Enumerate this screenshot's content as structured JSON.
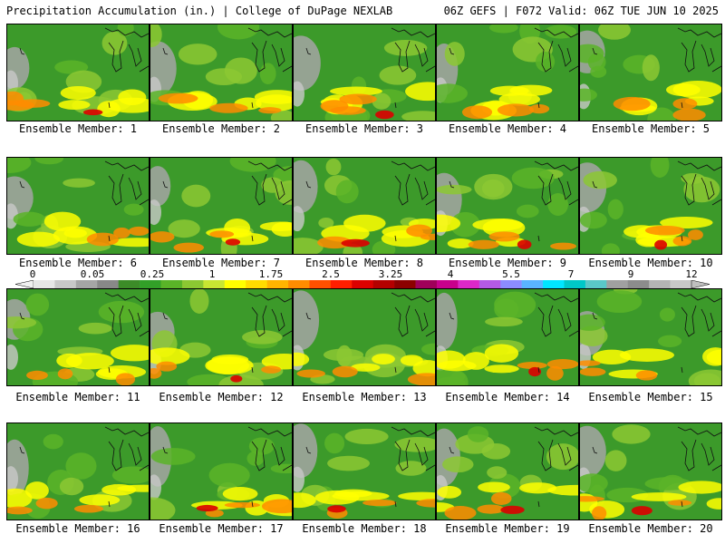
{
  "header": {
    "left": "Precipitation Accumulation (in.) | College of DuPage NEXLAB",
    "right": "06Z GEFS | F072 Valid: 06Z TUE JUN 10 2025"
  },
  "members": [
    {
      "label": "Ensemble Member: 1",
      "seed": 11
    },
    {
      "label": "Ensemble Member: 2",
      "seed": 23
    },
    {
      "label": "Ensemble Member: 3",
      "seed": 37
    },
    {
      "label": "Ensemble Member: 4",
      "seed": 41
    },
    {
      "label": "Ensemble Member: 5",
      "seed": 53
    },
    {
      "label": "Ensemble Member: 6",
      "seed": 67
    },
    {
      "label": "Ensemble Member: 7",
      "seed": 71
    },
    {
      "label": "Ensemble Member: 8",
      "seed": 83
    },
    {
      "label": "Ensemble Member: 9",
      "seed": 97
    },
    {
      "label": "Ensemble Member: 10",
      "seed": 101
    },
    {
      "label": "Ensemble Member: 11",
      "seed": 113
    },
    {
      "label": "Ensemble Member: 12",
      "seed": 127
    },
    {
      "label": "Ensemble Member: 13",
      "seed": 131
    },
    {
      "label": "Ensemble Member: 14",
      "seed": 149
    },
    {
      "label": "Ensemble Member: 15",
      "seed": 151
    },
    {
      "label": "Ensemble Member: 16",
      "seed": 163
    },
    {
      "label": "Ensemble Member: 17",
      "seed": 173
    },
    {
      "label": "Ensemble Member: 18",
      "seed": 181
    },
    {
      "label": "Ensemble Member: 19",
      "seed": 191
    },
    {
      "label": "Ensemble Member: 20",
      "seed": 199
    }
  ],
  "colorbar": {
    "ticks": [
      "0",
      "0.05",
      "0.25",
      "1",
      "1.75",
      "2.5",
      "3.25",
      "4",
      "5.5",
      "7",
      "9",
      "12"
    ],
    "colors": [
      "#e6e6e6",
      "#c8c8c8",
      "#a5a5a5",
      "#888888",
      "#3c8c28",
      "#32a028",
      "#5ab428",
      "#8cc832",
      "#c8e632",
      "#ffff00",
      "#ffdc00",
      "#ffb400",
      "#ff8c00",
      "#ff5000",
      "#ff1e00",
      "#dc0000",
      "#b40000",
      "#8c0000",
      "#a0005a",
      "#c8008c",
      "#dc28c8",
      "#b45ae6",
      "#8c8cff",
      "#5ab4ff",
      "#00e6ff",
      "#00c8c8",
      "#5ac8c8",
      "#a0a0a0",
      "#8c8c8c",
      "#b4b4b4",
      "#c8c8c8"
    ]
  }
}
